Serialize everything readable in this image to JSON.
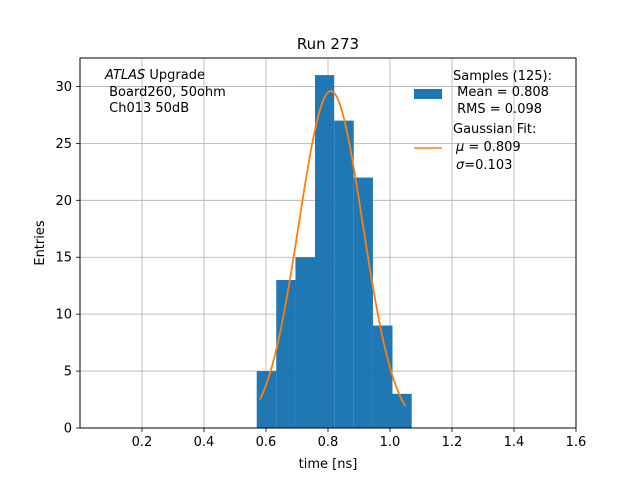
{
  "chart_data": {
    "type": "bar",
    "title": "Run 273",
    "xlabel": "time [ns]",
    "ylabel": "Entries",
    "xlim": [
      0.0,
      1.6
    ],
    "ylim": [
      0,
      32.5
    ],
    "xticks": [
      0.2,
      0.4,
      0.6,
      0.8,
      1.0,
      1.2,
      1.4,
      1.6
    ],
    "xtick_labels": [
      "0.2",
      "0.4",
      "0.6",
      "0.8",
      "1.0",
      "1.2",
      "1.4",
      "1.6"
    ],
    "yticks": [
      0,
      5,
      10,
      15,
      20,
      25,
      30
    ],
    "ytick_labels": [
      "0",
      "5",
      "10",
      "15",
      "20",
      "25",
      "30"
    ],
    "grid": true,
    "colors": {
      "histogram": "#1f77b4",
      "fit": "#ff7f0e"
    },
    "histogram": {
      "bin_edges": [
        0.57,
        0.633,
        0.695,
        0.758,
        0.82,
        0.883,
        0.945,
        1.008,
        1.07
      ],
      "counts": [
        5,
        13,
        15,
        31,
        27,
        22,
        9,
        3
      ]
    },
    "gaussian_fit": {
      "mu": 0.809,
      "sigma": 0.103,
      "amplitude": 29.6,
      "x_range": [
        0.58,
        1.05
      ]
    },
    "annotation": {
      "line1_italic": "ATLAS",
      "line1_rest": " Upgrade",
      "line2": " Board260, 50ohm",
      "line3": " Ch013 50dB"
    },
    "legend": {
      "position": "top-right",
      "samples_title": "Samples (125):",
      "samples_mean": " Mean = 0.808",
      "samples_rms": " RMS = 0.098",
      "fit_title": "Gaussian Fit:",
      "fit_mu_symbol": "μ",
      "fit_mu_value": " = 0.809",
      "fit_sigma_symbol": "σ",
      "fit_sigma_value": "=0.103"
    }
  }
}
